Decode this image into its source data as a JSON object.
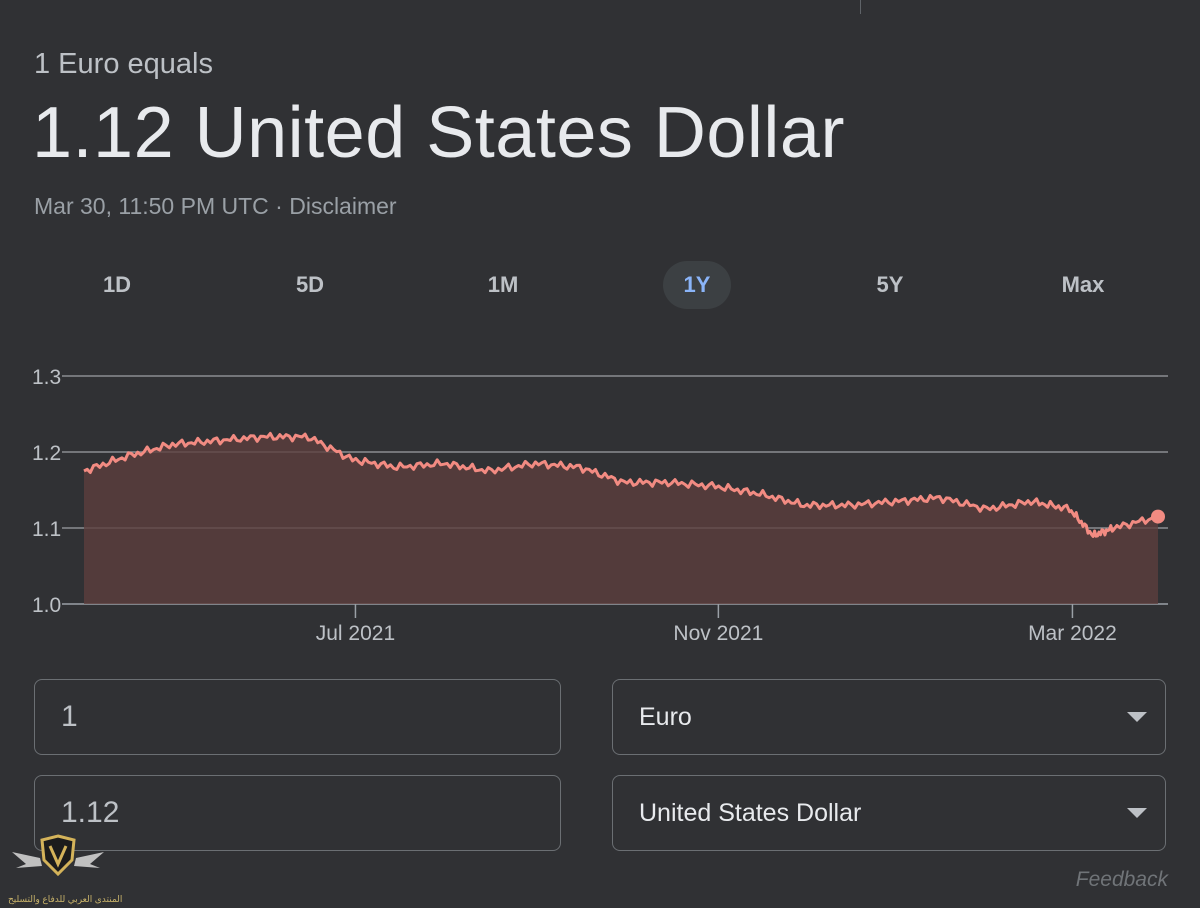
{
  "header": {
    "subtitle": "1 Euro equals",
    "rate": "1.12 United States Dollar",
    "timestamp": "Mar 30, 11:50 PM UTC",
    "separator": " · ",
    "disclaimer": "Disclaimer"
  },
  "tabs": [
    {
      "label": "1D",
      "active": false
    },
    {
      "label": "5D",
      "active": false
    },
    {
      "label": "1M",
      "active": false
    },
    {
      "label": "1Y",
      "active": true
    },
    {
      "label": "5Y",
      "active": false
    },
    {
      "label": "Max",
      "active": false
    }
  ],
  "chart_data": {
    "type": "area",
    "title": "",
    "xlabel": "",
    "ylabel": "",
    "ylim": [
      1.0,
      1.3
    ],
    "yticks": [
      "1.3",
      "1.2",
      "1.1",
      "1.0"
    ],
    "ytick_values": [
      1.3,
      1.2,
      1.1,
      1.0
    ],
    "xticks": [
      {
        "label": "Jul 2021",
        "date": "2021-07-01"
      },
      {
        "label": "Nov 2021",
        "date": "2021-11-01"
      },
      {
        "label": "Mar 2022",
        "date": "2022-03-01"
      }
    ],
    "grid": true,
    "line_color": "#f28b82",
    "fill_color": "#5c3f3d",
    "series": [
      {
        "x": [
          "2021-03-31",
          "2021-04-15",
          "2021-04-30",
          "2021-05-15",
          "2021-05-31",
          "2021-06-15",
          "2021-06-30",
          "2021-07-15",
          "2021-07-31",
          "2021-08-15",
          "2021-08-31",
          "2021-09-15",
          "2021-09-30",
          "2021-10-15",
          "2021-10-31",
          "2021-11-15",
          "2021-11-30",
          "2021-12-15",
          "2021-12-31",
          "2022-01-15",
          "2022-01-31",
          "2022-02-15",
          "2022-02-28",
          "2022-03-08",
          "2022-03-15",
          "2022-03-30"
        ],
        "values": [
          1.175,
          1.195,
          1.21,
          1.215,
          1.22,
          1.22,
          1.19,
          1.18,
          1.185,
          1.175,
          1.185,
          1.18,
          1.16,
          1.16,
          1.155,
          1.145,
          1.13,
          1.13,
          1.135,
          1.14,
          1.125,
          1.135,
          1.125,
          1.09,
          1.1,
          1.115
        ]
      }
    ]
  },
  "converter": {
    "from_amount": "1",
    "to_amount": "1.12",
    "from_currency": "Euro",
    "to_currency": "United States Dollar"
  },
  "footer": {
    "feedback": "Feedback"
  },
  "watermark": {
    "text": "المنتدى العربي للدفاع والتسليح"
  },
  "colors": {
    "background": "#303134",
    "accent": "#8ab4f8",
    "line": "#f28b82"
  }
}
